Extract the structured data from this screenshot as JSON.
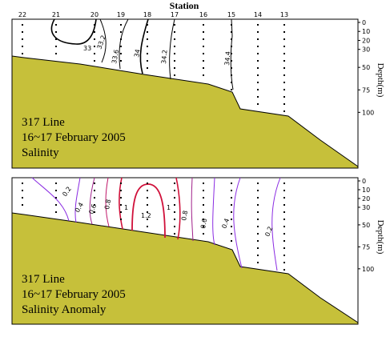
{
  "chart_data": [
    {
      "type": "contour",
      "title": "Station",
      "categories": [
        "22",
        "21",
        "20",
        "19",
        "18",
        "17",
        "16",
        "15",
        "14",
        "13"
      ],
      "ylim": [
        0,
        162
      ],
      "yticks": [
        0,
        10,
        20,
        30,
        50,
        75,
        100
      ],
      "ylabel": "Depth(m)",
      "annotations": [
        "317 Line",
        "16~17 February 2005",
        "Salinity"
      ],
      "contour_labels": [
        33,
        33.2,
        33.6,
        34,
        34.2,
        34.4
      ]
    },
    {
      "type": "contour",
      "ylim": [
        0,
        163
      ],
      "yticks": [
        0,
        10,
        20,
        30,
        50,
        75,
        100
      ],
      "ylabel": "Depth(m)",
      "annotations": [
        "317 Line",
        "16~17 February 2005",
        "Salinity Anomaly"
      ],
      "contour_labels": [
        0.2,
        0.4,
        0.6,
        0.8,
        1,
        1.2,
        1,
        0.8,
        0.6,
        0.4,
        0.2
      ]
    }
  ]
}
